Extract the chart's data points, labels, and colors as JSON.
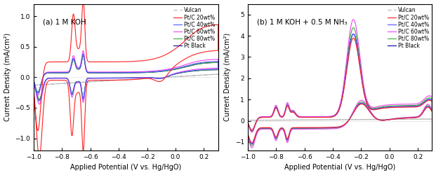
{
  "title_a": "(a) 1 M KOH",
  "title_b": "(b) 1 M KOH + 0.5 M NH₃",
  "xlabel": "Applied Potential (V vs. Hg/HgO)",
  "ylabel": "Current Density (mA/cm²)",
  "xlim": [
    -1.0,
    0.3
  ],
  "ylim_a": [
    -1.2,
    1.2
  ],
  "ylim_b": [
    -1.4,
    5.5
  ],
  "yticks_a": [
    -1.0,
    -0.5,
    0.0,
    0.5,
    1.0
  ],
  "yticks_b": [
    -1,
    0,
    1,
    2,
    3,
    4,
    5
  ],
  "xticks": [
    -1.0,
    -0.8,
    -0.6,
    -0.4,
    -0.2,
    0.0,
    0.2
  ],
  "legend_labels": [
    "Vulcan",
    "Pt/C 20wt%",
    "Pt/C 40wt%",
    "Pt/C 60wt%",
    "Pt/C 80wt%",
    "Pt Black"
  ],
  "colors": [
    "#b8b8b8",
    "#ff2020",
    "#5555ff",
    "#ee44ee",
    "#33aa33",
    "#000099"
  ],
  "background": "#ffffff"
}
